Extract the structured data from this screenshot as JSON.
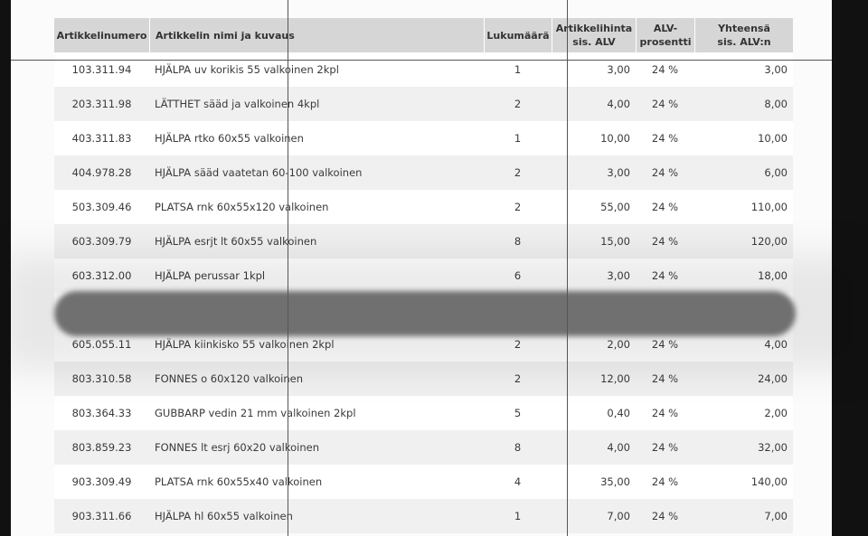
{
  "table": {
    "header": [
      "Artikkelinumero",
      "Artikkelin nimi ja kuvaus",
      "Lukumäärä",
      "Artikkelihinta\nsis. ALV",
      "ALV-\nprosentti",
      "Yhteensä\nsis. ALV:n"
    ],
    "upper_rows": [
      [
        "103.311.94",
        "HJÄLPA uv korikis 55 valkoinen 2kpl",
        "1",
        "3,00",
        "24 %",
        "3,00"
      ],
      [
        "203.311.98",
        "LÄTTHET sääd ja valkoinen 4kpl",
        "2",
        "4,00",
        "24 %",
        "8,00"
      ],
      [
        "403.311.83",
        "HJÄLPA rtko 60x55 valkoinen",
        "1",
        "10,00",
        "24 %",
        "10,00"
      ],
      [
        "404.978.28",
        "HJÄLPA sääd vaatetan 60-100 valkoinen",
        "2",
        "3,00",
        "24 %",
        "6,00"
      ],
      [
        "503.309.46",
        "PLATSA rnk 60x55x120 valkoinen",
        "2",
        "55,00",
        "24 %",
        "110,00"
      ],
      [
        "603.309.79",
        "HJÄLPA esrjt lt 60x55 valkoinen",
        "8",
        "15,00",
        "24 %",
        "120,00"
      ],
      [
        "603.312.00",
        "HJÄLPA perussar 1kpl",
        "6",
        "3,00",
        "24 %",
        "18,00"
      ]
    ],
    "lower_rows": [
      [
        "605.055.11",
        "HJÄLPA kiinkisko 55 valkoinen 2kpl",
        "2",
        "2,00",
        "24 %",
        "4,00"
      ],
      [
        "803.310.58",
        "FONNES o 60x120 valkoinen",
        "2",
        "12,00",
        "24 %",
        "24,00"
      ],
      [
        "803.364.33",
        "GUBBARP vedin 21 mm valkoinen 2kpl",
        "5",
        "0,40",
        "24 %",
        "2,00"
      ],
      [
        "803.859.23",
        "FONNES lt esrj 60x20 valkoinen",
        "8",
        "4,00",
        "24 %",
        "32,00"
      ],
      [
        "903.309.49",
        "PLATSA rnk 60x55x40 valkoinen",
        "4",
        "35,00",
        "24 %",
        "140,00"
      ],
      [
        "903.311.66",
        "HJÄLPA hl 60x55 valkoinen",
        "1",
        "7,00",
        "24 %",
        "7,00"
      ]
    ]
  }
}
